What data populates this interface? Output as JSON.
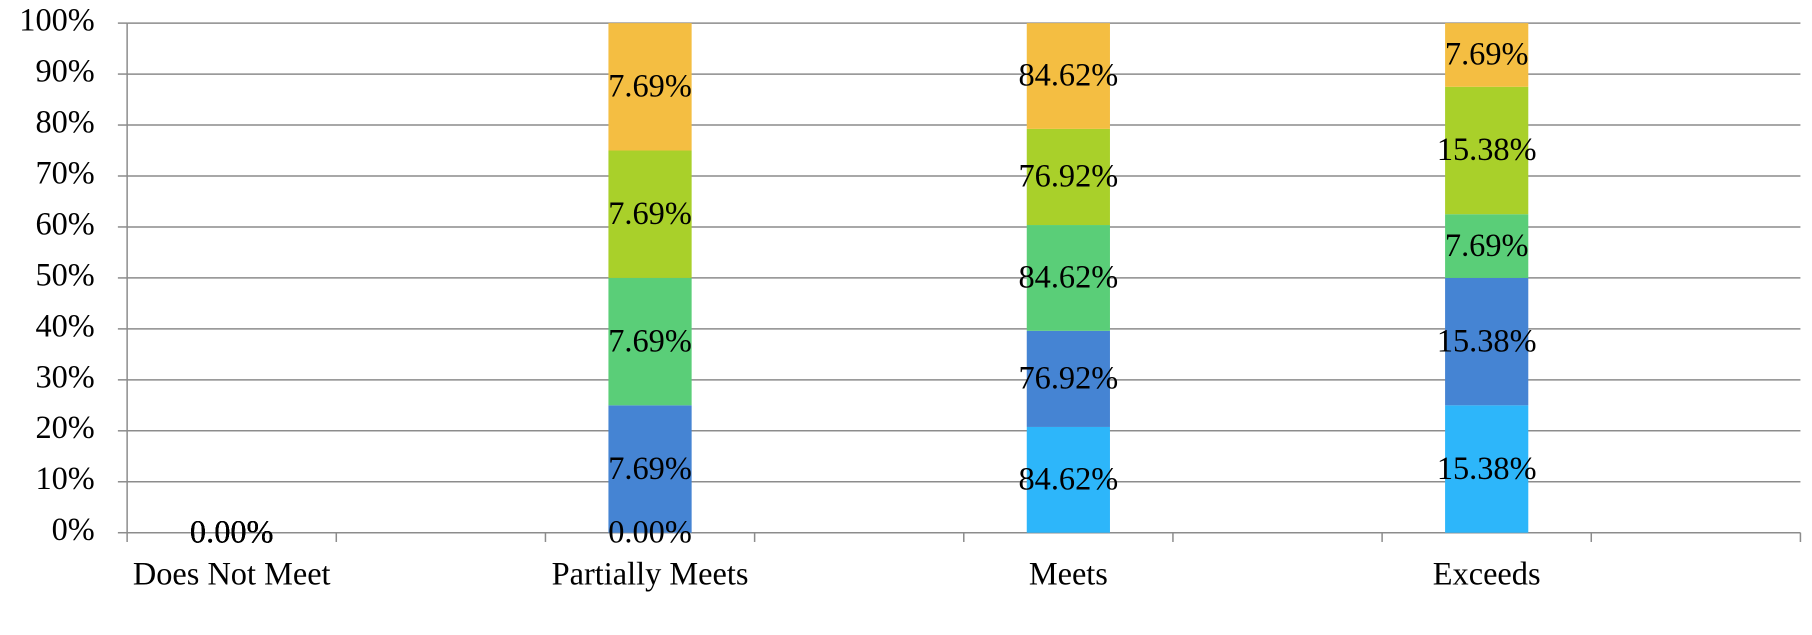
{
  "chart_data": {
    "type": "percent_stacked_bar",
    "categories": [
      "Does Not Meet",
      null,
      "Partially Meets",
      null,
      "Meets",
      null,
      "Exceeds",
      null
    ],
    "series": [
      {
        "color": "#2db6fa",
        "values": [
          0,
          null,
          0,
          null,
          84.62,
          null,
          15.38,
          null
        ],
        "value_labels": [
          "0.00%",
          null,
          "0.00%",
          null,
          "84.62%",
          null,
          "15.38%",
          null
        ]
      },
      {
        "color": "#4584d3",
        "values": [
          0,
          null,
          7.69,
          null,
          76.92,
          null,
          15.38,
          null
        ],
        "value_labels": [
          "0.00%",
          null,
          "7.69%",
          null,
          "76.92%",
          null,
          "15.38%",
          null
        ]
      },
      {
        "color": "#5ace78",
        "values": [
          0,
          null,
          7.69,
          null,
          84.62,
          null,
          7.69,
          null
        ],
        "value_labels": [
          "0.00%",
          null,
          "7.69%",
          null,
          "84.62%",
          null,
          "7.69%",
          null
        ]
      },
      {
        "color": "#a9d02a",
        "values": [
          0,
          null,
          7.69,
          null,
          76.92,
          null,
          15.38,
          null
        ],
        "value_labels": [
          "0.00%",
          null,
          "7.69%",
          null,
          "76.92%",
          null,
          "15.38%",
          null
        ]
      },
      {
        "color": "#f4be42",
        "values": [
          0,
          null,
          7.69,
          null,
          84.62,
          null,
          7.69,
          null
        ],
        "value_labels": [
          "0.00%",
          null,
          "7.69%",
          null,
          "84.62%",
          null,
          "7.69%",
          null
        ]
      }
    ],
    "ylim": [
      0,
      100
    ],
    "yticks": [
      {
        "value": 0,
        "label": "0%"
      },
      {
        "value": 10,
        "label": "10%"
      },
      {
        "value": 20,
        "label": "20%"
      },
      {
        "value": 30,
        "label": "30%"
      },
      {
        "value": 40,
        "label": "40%"
      },
      {
        "value": 50,
        "label": "50%"
      },
      {
        "value": 60,
        "label": "60%"
      },
      {
        "value": 70,
        "label": "70%"
      },
      {
        "value": 80,
        "label": "80%"
      },
      {
        "value": 90,
        "label": "90%"
      },
      {
        "value": 100,
        "label": "100%"
      }
    ],
    "grid": true
  }
}
